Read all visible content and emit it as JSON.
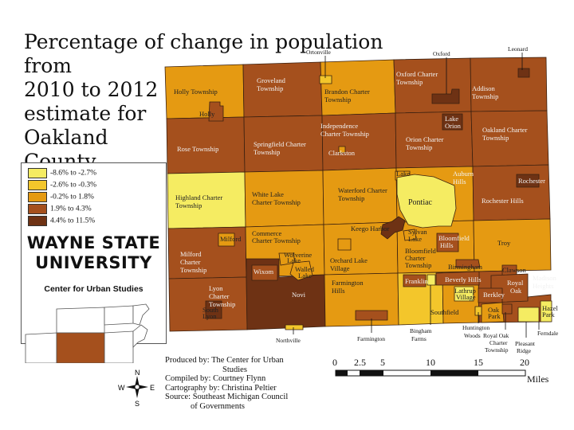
{
  "title": "Percentage of change in population from\n2010 to 2012\nestimate for\nOakland\nCounty",
  "legend": {
    "items": [
      {
        "label": "-8.6% to -2.7%",
        "color": "#f5ec62"
      },
      {
        "label": "-2.6% to -0.3%",
        "color": "#f3c62b"
      },
      {
        "label": "-0.2% to  1.8%",
        "color": "#e59a12"
      },
      {
        "label": "1.9% to  4.3%",
        "color": "#a5501d"
      },
      {
        "label": "4.4% to  11.5%",
        "color": "#6e3214"
      }
    ]
  },
  "branding": {
    "line1": "WAYNE STATE",
    "line2": "UNIVERSITY",
    "center": "Center for Urban Studies"
  },
  "inset_colors": {
    "highlight": "#a5501d"
  },
  "credits": {
    "produced": "Produced by: The Center for Urban",
    "produced2": "Studies",
    "compiled": "Compiled by: Courtney Flynn",
    "cartography": "Cartography by: Christina Peltier",
    "source": "Source: Southeast Michigan Council",
    "source2": "of Governments"
  },
  "scale": {
    "ticks": [
      "0",
      "2.5",
      "5",
      "10",
      "15",
      "20"
    ],
    "unit": "Miles"
  },
  "compass": {
    "n": "N",
    "s": "S",
    "e": "E",
    "w": "W"
  },
  "places": {
    "holly_twp": "Holly Township",
    "holly": "Holly",
    "groveland": [
      "Groveland",
      "Township"
    ],
    "brandon": [
      "Brandon Charter",
      "Township"
    ],
    "oxford_twp": [
      "Oxford Charter",
      "Township"
    ],
    "addison": [
      "Addison",
      "Township"
    ],
    "rose": "Rose Township",
    "springfield": [
      "Springfield Charter",
      "Township"
    ],
    "independence": [
      "Independence",
      "Charter Township"
    ],
    "clarkston": "Clarkston",
    "orion": [
      "Orion Charter",
      "Township"
    ],
    "lake_orion": [
      "Lake",
      "Orion"
    ],
    "oakland_twp": [
      "Oakland Charter",
      "Township"
    ],
    "highland": [
      "Highland Charter",
      "Township"
    ],
    "white_lake": [
      "White Lake",
      "Charter Township"
    ],
    "waterford": [
      "Waterford Charter",
      "Township"
    ],
    "lake_angelus": [
      "Lake",
      "Angelus"
    ],
    "pontiac": "Pontiac",
    "auburn_hills": [
      "Auburn",
      "Hills"
    ],
    "rochester": "Rochester",
    "rochester_hills": "Rochester Hills",
    "keego": "Keego Harbor",
    "sylvan": [
      "Sylvan",
      "Lake"
    ],
    "bloomfield_hills": [
      "Bloomfield",
      "Hills"
    ],
    "bloomfield_twp": [
      "Bloomfield",
      "Charter",
      "Township"
    ],
    "troy": "Troy",
    "milford_twp": [
      "Milford",
      "Charter",
      "Township"
    ],
    "milford": "Milford",
    "commerce": [
      "Commerce",
      "Charter Township"
    ],
    "wolverine": [
      "Wolverine",
      "Lake"
    ],
    "walled_lake": [
      "Walled",
      "Lake"
    ],
    "wixom": "Wixom",
    "orchard_lake": [
      "Orchard Lake",
      "Village"
    ],
    "birmingham": "Birmingham",
    "clawson": "Clawson",
    "lyon": [
      "Lyon",
      "Charter",
      "Township"
    ],
    "south_lyon": [
      "South",
      "Lyon"
    ],
    "novi": "Novi",
    "farmington_hills": [
      "Farmington",
      "Hills"
    ],
    "franklin": "Franklin",
    "beverly_hills": "Beverly Hills",
    "royal_oak": [
      "Royal",
      "Oak"
    ],
    "madison_heights": [
      "Madison",
      "Heights"
    ],
    "lathrup": [
      "Lathrup",
      "Village"
    ],
    "berkley": "Berkley",
    "southfield": "Southfield",
    "oak_park": [
      "Oak",
      "Park"
    ],
    "hazel_park": [
      "Hazel",
      "Park"
    ],
    "ortonville": "Ortonville",
    "oxford": "Oxford",
    "leonard": "Leonard",
    "northville": "Northville",
    "farmington": "Farmington",
    "bingham": [
      "Bingham",
      "Farms"
    ],
    "huntington": [
      "Huntington",
      "Woods"
    ],
    "royal_oak_twp": [
      "Royal Oak",
      "Charter",
      "Township"
    ],
    "pleasant_ridge": [
      "Pleasant",
      "Ridge"
    ],
    "ferndale": "Ferndale"
  }
}
